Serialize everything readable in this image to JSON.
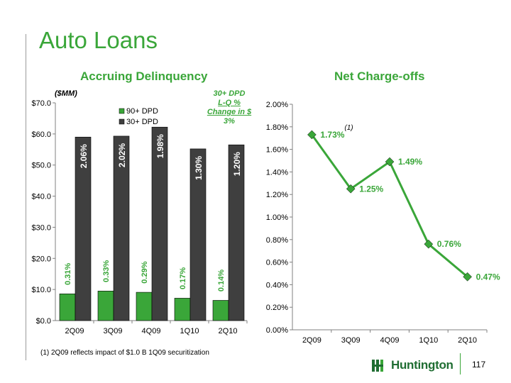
{
  "page": {
    "title": "Auto Loans",
    "page_number": "117",
    "footnote": "(1) 2Q09 reflects impact of $1.0 B 1Q09 securitization",
    "logo_text": "Huntington",
    "colors": {
      "green": "#3aa639",
      "dark_bar": "#3f3f3f",
      "logo_green": "#1f6d32"
    }
  },
  "chart_data": [
    {
      "type": "bar",
      "title": "Accruing Delinquency",
      "unit_label": "($MM)",
      "categories": [
        "2Q09",
        "3Q09",
        "4Q09",
        "1Q10",
        "2Q10"
      ],
      "ylim": [
        0,
        70
      ],
      "yticks": [
        "$0.0",
        "$10.0",
        "$20.0",
        "$30.0",
        "$40.0",
        "$50.0",
        "$60.0",
        "$70.0"
      ],
      "legend_placement": "top-right",
      "series": [
        {
          "name": "90+ DPD",
          "color": "#3aa639",
          "values": [
            8.6,
            9.5,
            9.1,
            7.2,
            6.5
          ],
          "labels": [
            "0.31%",
            "0.33%",
            "0.29%",
            "0.17%",
            "0.14%"
          ]
        },
        {
          "name": "30+ DPD",
          "color": "#3f3f3f",
          "values": [
            59.0,
            59.3,
            62.2,
            55.2,
            56.5
          ],
          "labels": [
            "2.06%",
            "2.02%",
            "1.98%",
            "1.30%",
            "1.20%"
          ]
        }
      ],
      "annotation": {
        "lines": [
          "30+ DPD",
          "L-Q %",
          "Change in $"
        ],
        "value": "3%"
      }
    },
    {
      "type": "line",
      "title": "Net Charge-offs",
      "categories": [
        "2Q09",
        "3Q09",
        "4Q09",
        "1Q10",
        "2Q10"
      ],
      "ylim": [
        0,
        2.0
      ],
      "yticks": [
        "0.00%",
        "0.20%",
        "0.40%",
        "0.60%",
        "0.80%",
        "1.00%",
        "1.20%",
        "1.40%",
        "1.60%",
        "1.80%",
        "2.00%"
      ],
      "series": [
        {
          "color": "#3aa639",
          "values": [
            1.73,
            1.25,
            1.49,
            0.76,
            0.47
          ],
          "labels": [
            "1.73%",
            "1.25%",
            "1.49%",
            "0.76%",
            "0.47%"
          ]
        }
      ],
      "footnote_marker": "(1)"
    }
  ]
}
